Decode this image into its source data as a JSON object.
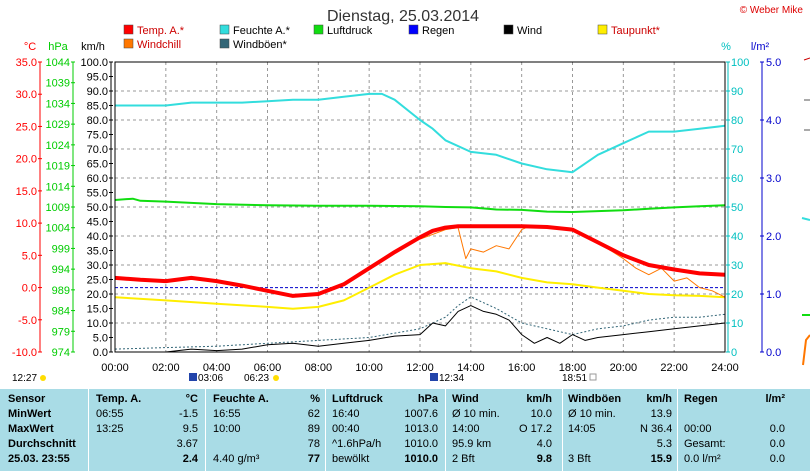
{
  "title": "Dienstag, 25.03.2014",
  "credit": "© Weber Mike",
  "sunrise_time": "03:06",
  "sunset_time": "18:51",
  "moonrise_time": "06:23",
  "moonset_time": "12:34",
  "left_time_marker": "12:27",
  "chart_data": {
    "type": "line",
    "x_unit": "hours",
    "xlim": [
      0,
      24
    ],
    "x_ticks": [
      "00:00",
      "02:00",
      "04:00",
      "06:00",
      "08:00",
      "10:00",
      "12:00",
      "14:00",
      "16:00",
      "18:00",
      "20:00",
      "22:00",
      "24:00"
    ],
    "grid": true,
    "axes": {
      "temp": {
        "unit": "°C",
        "range": [
          -10,
          35
        ],
        "ticks": [
          "35.0",
          "30.0",
          "25.0",
          "20.0",
          "15.0",
          "10.0",
          "5.0",
          "0.0",
          "-5.0",
          "-10.0"
        ],
        "color": "#ff0000"
      },
      "pressure": {
        "unit": "hPa",
        "range": [
          974,
          1044
        ],
        "ticks": [
          "1044",
          "1039",
          "1034",
          "1029",
          "1024",
          "1019",
          "1014",
          "1009",
          "1004",
          "999",
          "994",
          "989",
          "984",
          "979",
          "974"
        ],
        "color": "#00cc00"
      },
      "wind": {
        "unit": "km/h",
        "range": [
          0,
          100
        ],
        "ticks": [
          "100.0",
          "95.0",
          "90.0",
          "85.0",
          "80.0",
          "75.0",
          "70.0",
          "65.0",
          "60.0",
          "55.0",
          "50.0",
          "45.0",
          "40.0",
          "35.0",
          "30.0",
          "25.0",
          "20.0",
          "15.0",
          "10.0",
          "5.0",
          "0.0"
        ],
        "color": "#000000"
      },
      "humidity": {
        "unit": "%",
        "range": [
          0,
          100
        ],
        "ticks": [
          "100",
          "90",
          "80",
          "70",
          "60",
          "50",
          "40",
          "30",
          "20",
          "10",
          "0"
        ],
        "color": "#00c0c0"
      },
      "radiation": {
        "unit": "l/m²",
        "range": [
          0,
          5
        ],
        "ticks": [
          "5.0",
          "4.0",
          "3.0",
          "2.0",
          "1.0",
          "0.0"
        ],
        "color": "#0000cc"
      }
    },
    "legend": [
      {
        "label": "Temp. A.*",
        "color": "#ff0000"
      },
      {
        "label": "Feuchte A.*",
        "color": "#33dddd"
      },
      {
        "label": "Luftdruck",
        "color": "#11dd11"
      },
      {
        "label": "Regen",
        "color": "#0000ff"
      },
      {
        "label": "Wind",
        "color": "#000000"
      },
      {
        "label": "Taupunkt*",
        "color": "#ffee00"
      },
      {
        "label": "Windchill",
        "color": "#ff7700"
      },
      {
        "label": "Windböen*",
        "color": "#336677"
      }
    ],
    "series": {
      "temp": {
        "axis": "temp",
        "color": "#ff0000",
        "width": 4,
        "x": [
          0,
          1,
          2,
          3,
          4,
          5,
          6,
          7,
          8,
          9,
          10,
          11,
          12,
          12.5,
          13,
          13.5,
          14,
          15,
          16,
          17,
          18,
          19,
          20,
          21,
          22,
          23,
          24
        ],
        "y": [
          1.5,
          1.2,
          1.0,
          1.5,
          1.0,
          0.3,
          -0.5,
          -1.3,
          -1.0,
          0.5,
          3.0,
          5.5,
          7.8,
          8.8,
          9.3,
          9.5,
          9.5,
          9.5,
          9.5,
          9.4,
          9.0,
          7.0,
          5.0,
          3.5,
          2.8,
          2.2,
          2.0
        ]
      },
      "humidity": {
        "axis": "humidity",
        "color": "#33dddd",
        "width": 2,
        "x": [
          0,
          1,
          2,
          3,
          4,
          5,
          6,
          7,
          8,
          9,
          10,
          10.5,
          11,
          12,
          12.5,
          13,
          14,
          15,
          16,
          17,
          18,
          19,
          20,
          21,
          22,
          23,
          24
        ],
        "y": [
          85,
          85,
          85,
          86,
          86,
          86,
          86.5,
          87,
          87,
          88,
          89,
          89,
          87,
          80,
          77,
          73,
          69,
          68,
          65,
          63,
          62,
          68,
          72,
          76,
          76,
          77,
          78
        ]
      },
      "pressure": {
        "axis": "pressure",
        "color": "#11dd11",
        "width": 2,
        "x": [
          0,
          0.7,
          1,
          2,
          4,
          6,
          8,
          10,
          12,
          13,
          14,
          15,
          16,
          17,
          18,
          19,
          20,
          21,
          22,
          23,
          24
        ],
        "y": [
          1010.7,
          1011.0,
          1010.5,
          1010.3,
          1009.7,
          1009.4,
          1009.3,
          1009.3,
          1009.2,
          1009.0,
          1008.9,
          1008.4,
          1008.3,
          1007.9,
          1007.8,
          1008.0,
          1008.2,
          1008.6,
          1008.9,
          1009.2,
          1009.4
        ]
      },
      "dewpoint": {
        "axis": "temp",
        "color": "#ffee00",
        "width": 2,
        "x": [
          0,
          2,
          4,
          6,
          7,
          8,
          9,
          10,
          11,
          12,
          13,
          14,
          15,
          16,
          17,
          18,
          19,
          20,
          21,
          22,
          23,
          24
        ],
        "y": [
          -1.5,
          -2.0,
          -2.5,
          -3.0,
          -3.3,
          -3.0,
          -2.0,
          0.0,
          2.0,
          3.5,
          3.8,
          3.0,
          2.5,
          1.5,
          0.8,
          0.5,
          0.0,
          -0.5,
          -1.0,
          -1.2,
          -1.3,
          -1.5
        ]
      },
      "windchill": {
        "axis": "temp",
        "color": "#ff7700",
        "width": 1,
        "x": [
          12,
          13,
          13.5,
          13.8,
          14,
          14.5,
          15,
          15.5,
          16,
          16.3,
          16.6,
          17,
          18,
          19,
          20,
          20.5,
          21,
          21.5,
          22,
          22.5,
          23,
          23.5,
          24
        ],
        "y": [
          7.5,
          9.0,
          9.3,
          4.5,
          6.0,
          5.5,
          6.5,
          6.0,
          9.0,
          9.5,
          9.4,
          9.3,
          8.8,
          7.0,
          4.5,
          3.0,
          2.0,
          3.0,
          1.0,
          1.5,
          0.0,
          -0.5,
          -1.5
        ]
      },
      "wind": {
        "axis": "wind",
        "color": "#000000",
        "width": 1,
        "x": [
          0,
          2,
          3,
          4,
          5,
          6,
          7,
          8,
          9,
          10,
          11,
          12,
          12.5,
          13,
          13.5,
          14,
          14.5,
          15,
          15.5,
          16,
          16.5,
          17,
          17.5,
          18,
          18.5,
          19,
          20,
          21,
          22,
          23,
          24
        ],
        "y": [
          0,
          0,
          1,
          0.5,
          1,
          2.5,
          3,
          2,
          3,
          4,
          5.5,
          6,
          10,
          9,
          14,
          16,
          14,
          13,
          11,
          6,
          3,
          5,
          3,
          6,
          4,
          5,
          6,
          7,
          8,
          9,
          10
        ]
      },
      "gusts": {
        "axis": "wind",
        "color": "#336677",
        "width": 1,
        "dashed": true,
        "x": [
          0,
          2,
          4,
          6,
          8,
          10,
          12,
          12.5,
          13,
          13.5,
          14,
          14.5,
          15,
          16,
          17,
          18,
          19,
          20,
          21,
          22,
          23,
          24
        ],
        "y": [
          1,
          1.5,
          2,
          3,
          4,
          5,
          8,
          10,
          12,
          16,
          19,
          17,
          15,
          10,
          8,
          6,
          8,
          9,
          11,
          12,
          12,
          13
        ]
      },
      "reference": {
        "axis": "temp",
        "color": "#0000cc",
        "width": 1,
        "dashed": true,
        "x": [
          0,
          24
        ],
        "y": [
          0,
          0
        ]
      }
    }
  },
  "table": {
    "headers": [
      "Sensor",
      "Temp. A.",
      "°C",
      "Feuchte A.",
      "%",
      "Luftdruck",
      "hPa",
      "Wind",
      "km/h",
      "Windböen",
      "km/h",
      "Regen",
      "l/m²"
    ],
    "rows": [
      [
        "MinWert",
        "06:55",
        "-1.5",
        "16:55",
        "62",
        "16:40",
        "1007.6",
        "Ø 10 min.",
        "10.0",
        "Ø 10 min.",
        "13.9",
        "",
        ""
      ],
      [
        "MaxWert",
        "13:25",
        "9.5",
        "10:00",
        "89",
        "00:40",
        "1013.0",
        "14:00",
        "O 17.2",
        "14:05",
        "N 36.4",
        "00:00",
        "0.0"
      ],
      [
        "Durchschnitt",
        "",
        "3.67",
        "",
        "78",
        "^1.6hPa/h",
        "1010.0",
        "95.9 km",
        "4.0",
        "",
        "5.3",
        "Gesamt:",
        "0.0"
      ],
      [
        "25.03. 23:55",
        "",
        "2.4",
        "4.40 g/m³",
        "77",
        "bewölkt",
        "1010.0",
        "2 Bft",
        "9.8",
        "3 Bft",
        "15.9",
        "0.0 l/m²",
        "0.0"
      ]
    ]
  }
}
